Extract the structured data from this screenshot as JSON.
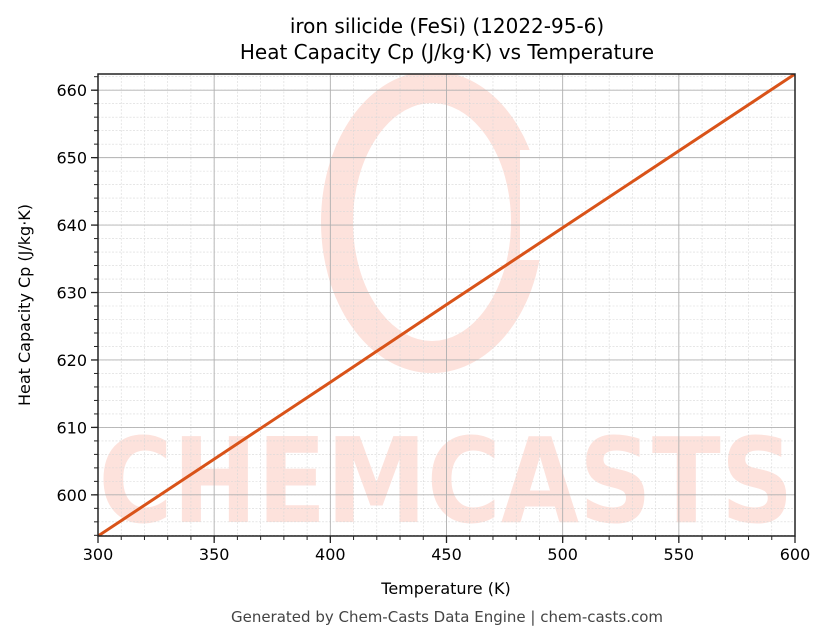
{
  "chart_data": {
    "type": "line",
    "title": "iron silicide (FeSi) (12022-95-6)",
    "subtitle": "Heat Capacity Cp (J/kg·K) vs Temperature",
    "xlabel": "Temperature (K)",
    "ylabel": "Heat Capacity Cp (J/kg·K)",
    "xlim": [
      300,
      600
    ],
    "ylim": [
      593.9,
      662.4
    ],
    "xticks": [
      300,
      350,
      400,
      450,
      500,
      550,
      600
    ],
    "yticks": [
      600,
      610,
      620,
      630,
      640,
      650,
      660
    ],
    "grid": true,
    "minor_grid": true,
    "legend": null,
    "series": [
      {
        "name": "Heat Capacity Cp",
        "color": "#D95319",
        "x": [
          300,
          350,
          400,
          450,
          500,
          550,
          600
        ],
        "values": [
          593.9,
          605.3,
          616.7,
          628.2,
          639.6,
          651.0,
          662.4
        ]
      }
    ],
    "watermark": "CHEMCASTS",
    "footer": "Generated by Chem-Casts Data Engine | chem-casts.com"
  },
  "header": {
    "title": "iron silicide (FeSi) (12022-95-6)",
    "subtitle": "Heat Capacity Cp (J/kg·K) vs Temperature"
  },
  "axes": {
    "x_label": "Temperature (K)",
    "y_label": "Heat Capacity Cp (J/kg·K)",
    "x_tick_labels": [
      "300",
      "350",
      "400",
      "450",
      "500",
      "550",
      "600"
    ],
    "y_tick_labels": [
      "600",
      "610",
      "620",
      "630",
      "640",
      "650",
      "660"
    ]
  },
  "footer": {
    "text": "Generated by Chem-Casts Data Engine | chem-casts.com"
  },
  "watermark": {
    "text": "CHEMCASTS"
  }
}
